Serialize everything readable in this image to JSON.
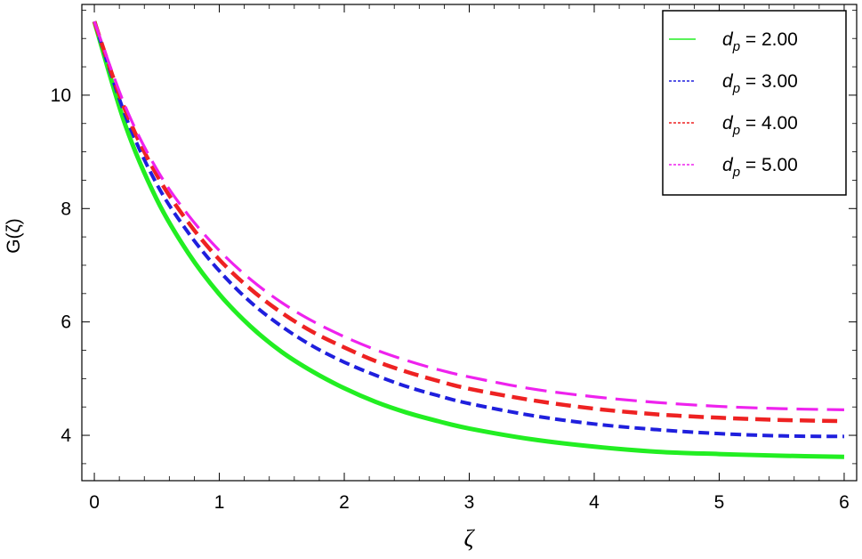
{
  "chart_data": {
    "type": "line",
    "title": "",
    "xlabel": "ζ",
    "ylabel": "G(ζ)",
    "xlim": [
      -0.1,
      6.1
    ],
    "ylim": [
      3.2,
      11.6
    ],
    "xticks": [
      0,
      1,
      2,
      3,
      4,
      5,
      6
    ],
    "xtick_labels": [
      "0",
      "1",
      "2",
      "3",
      "4",
      "5",
      "6"
    ],
    "yticks": [
      4,
      6,
      8,
      10
    ],
    "ytick_labels": [
      "4",
      "6",
      "8",
      "10"
    ],
    "grid": false,
    "legend_position": "top-right",
    "x": [
      0,
      0.25,
      0.5,
      0.75,
      1,
      1.25,
      1.5,
      1.75,
      2,
      2.25,
      2.5,
      2.75,
      3,
      3.5,
      4,
      4.5,
      5,
      5.5,
      6
    ],
    "series": [
      {
        "legend_symbol": "d",
        "legend_subscript": "p",
        "legend_value": " = 2.00",
        "color": "#22ee22",
        "style": "solid",
        "values": [
          11.3,
          9.46,
          8.16,
          7.22,
          6.49,
          5.92,
          5.47,
          5.12,
          4.83,
          4.59,
          4.4,
          4.25,
          4.12,
          3.93,
          3.8,
          3.71,
          3.67,
          3.64,
          3.62
        ]
      },
      {
        "legend_symbol": "d",
        "legend_subscript": "p",
        "legend_value": " = 3.00",
        "color": "#1f1fdd",
        "style": "short-dash",
        "values": [
          11.3,
          9.63,
          8.43,
          7.58,
          6.9,
          6.35,
          5.92,
          5.57,
          5.29,
          5.06,
          4.86,
          4.7,
          4.56,
          4.35,
          4.2,
          4.1,
          4.03,
          3.99,
          3.98
        ]
      },
      {
        "legend_symbol": "d",
        "legend_subscript": "p",
        "legend_value": " = 4.00",
        "color": "#ee2222",
        "style": "dash",
        "values": [
          11.3,
          9.72,
          8.59,
          7.76,
          7.1,
          6.58,
          6.16,
          5.82,
          5.55,
          5.31,
          5.12,
          4.96,
          4.82,
          4.62,
          4.47,
          4.37,
          4.31,
          4.27,
          4.25
        ]
      },
      {
        "legend_symbol": "d",
        "legend_subscript": "p",
        "legend_value": " = 5.00",
        "color": "#ee22ee",
        "style": "long-dash",
        "values": [
          11.3,
          9.79,
          8.69,
          7.89,
          7.26,
          6.75,
          6.34,
          6.01,
          5.74,
          5.51,
          5.32,
          5.16,
          5.03,
          4.82,
          4.68,
          4.58,
          4.51,
          4.47,
          4.45
        ]
      }
    ]
  }
}
